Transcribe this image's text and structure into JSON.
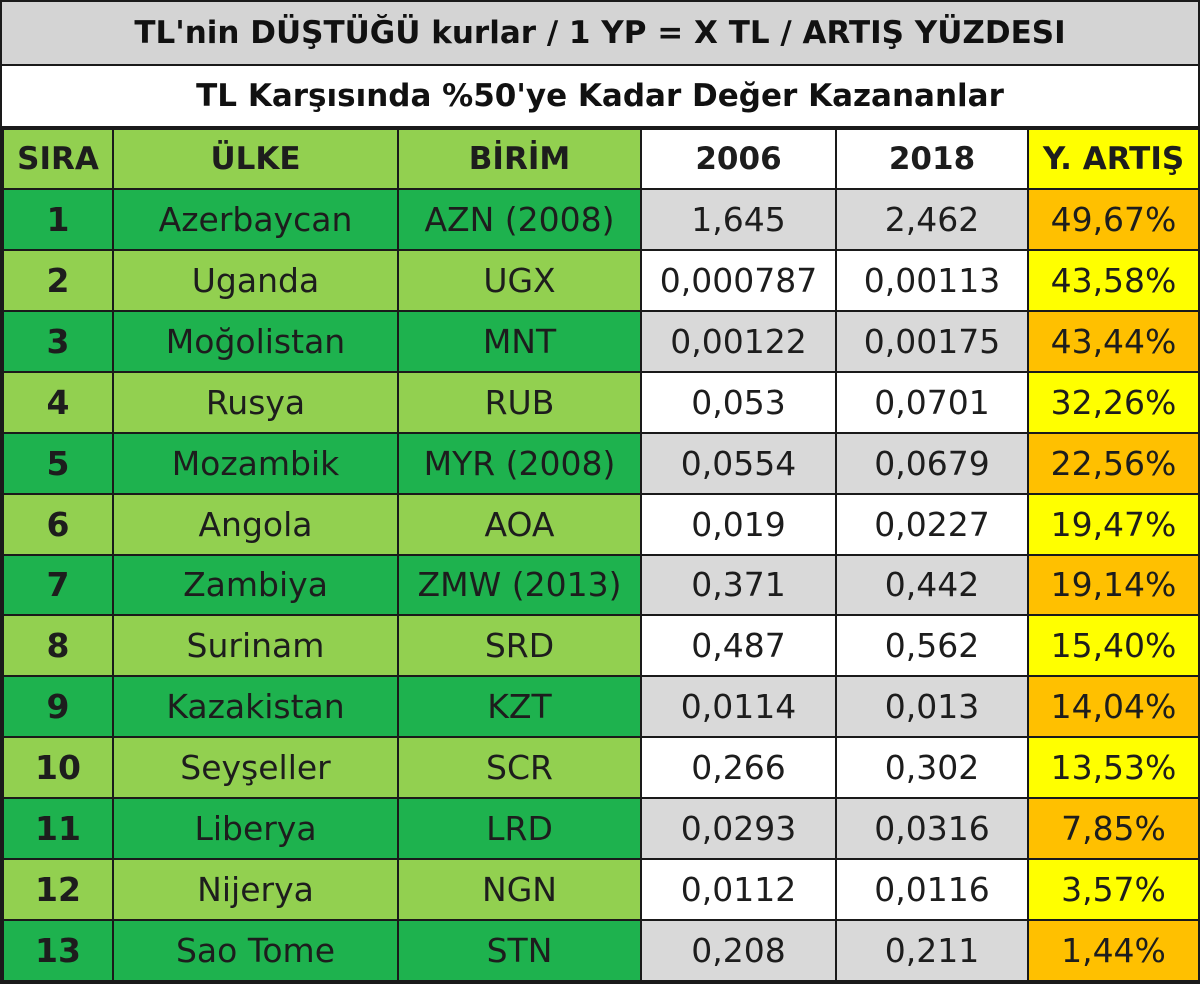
{
  "title": "TL'nin DÜŞTÜĞÜ kurlar / 1 YP = X TL / ARTIŞ YÜZDESI",
  "subtitle": "TL Karşısında %50'ye Kadar Değer Kazananlar",
  "headers": {
    "sira": "SIRA",
    "ulke": "ÜLKE",
    "birim": "BİRİM",
    "y2006": "2006",
    "y2018": "2018",
    "artis": "Y. ARTIŞ"
  },
  "colors": {
    "dark_green": "#1eb24e",
    "light_green": "#92d050",
    "gray": "#d9d9d9",
    "orange": "#ffc000",
    "yellow": "#ffff00"
  },
  "rows": [
    {
      "sira": "1",
      "ulke": "Azerbaycan",
      "birim": "AZN (2008)",
      "y2006": "1,645",
      "y2018": "2,462",
      "artis": "49,67%"
    },
    {
      "sira": "2",
      "ulke": "Uganda",
      "birim": "UGX",
      "y2006": "0,000787",
      "y2018": "0,00113",
      "artis": "43,58%"
    },
    {
      "sira": "3",
      "ulke": "Moğolistan",
      "birim": "MNT",
      "y2006": "0,00122",
      "y2018": "0,00175",
      "artis": "43,44%"
    },
    {
      "sira": "4",
      "ulke": "Rusya",
      "birim": "RUB",
      "y2006": "0,053",
      "y2018": "0,0701",
      "artis": "32,26%"
    },
    {
      "sira": "5",
      "ulke": "Mozambik",
      "birim": "MYR (2008)",
      "y2006": "0,0554",
      "y2018": "0,0679",
      "artis": "22,56%"
    },
    {
      "sira": "6",
      "ulke": "Angola",
      "birim": "AOA",
      "y2006": "0,019",
      "y2018": "0,0227",
      "artis": "19,47%"
    },
    {
      "sira": "7",
      "ulke": "Zambiya",
      "birim": "ZMW (2013)",
      "y2006": "0,371",
      "y2018": "0,442",
      "artis": "19,14%"
    },
    {
      "sira": "8",
      "ulke": "Surinam",
      "birim": "SRD",
      "y2006": "0,487",
      "y2018": "0,562",
      "artis": "15,40%"
    },
    {
      "sira": "9",
      "ulke": "Kazakistan",
      "birim": "KZT",
      "y2006": "0,0114",
      "y2018": "0,013",
      "artis": "14,04%"
    },
    {
      "sira": "10",
      "ulke": "Seyşeller",
      "birim": "SCR",
      "y2006": "0,266",
      "y2018": "0,302",
      "artis": "13,53%"
    },
    {
      "sira": "11",
      "ulke": "Liberya",
      "birim": "LRD",
      "y2006": "0,0293",
      "y2018": "0,0316",
      "artis": "7,85%"
    },
    {
      "sira": "12",
      "ulke": "Nijerya",
      "birim": "NGN",
      "y2006": "0,0112",
      "y2018": "0,0116",
      "artis": "3,57%"
    },
    {
      "sira": "13",
      "ulke": "Sao Tome",
      "birim": "STN",
      "y2006": "0,208",
      "y2018": "0,211",
      "artis": "1,44%"
    }
  ]
}
